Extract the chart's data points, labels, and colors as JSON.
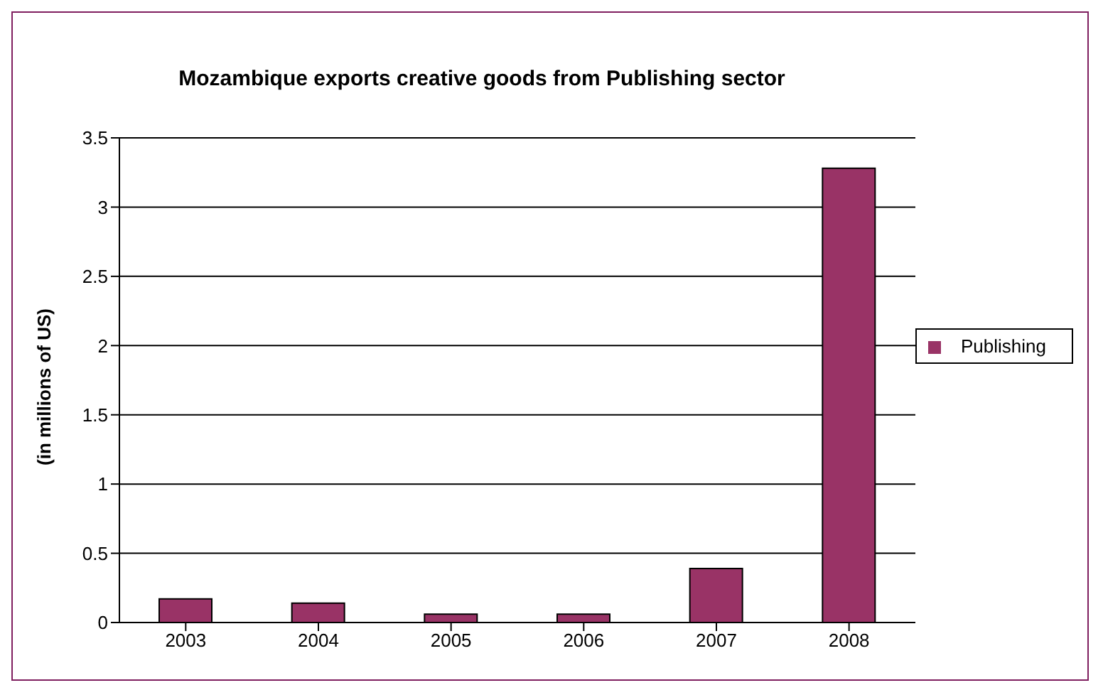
{
  "chart_data": {
    "type": "bar",
    "title": "Mozambique exports creative goods from Publishing sector",
    "ylabel": "(in millions of US)",
    "categories": [
      "2003",
      "2004",
      "2005",
      "2006",
      "2007",
      "2008"
    ],
    "series": [
      {
        "name": "Publishing",
        "color": "#993366",
        "values": [
          0.17,
          0.14,
          0.06,
          0.06,
          0.39,
          3.28
        ]
      }
    ],
    "ylim": [
      0,
      3.5
    ],
    "yticks": [
      0,
      0.5,
      1,
      1.5,
      2,
      2.5,
      3,
      3.5
    ],
    "grid": "y",
    "legend": "right"
  }
}
